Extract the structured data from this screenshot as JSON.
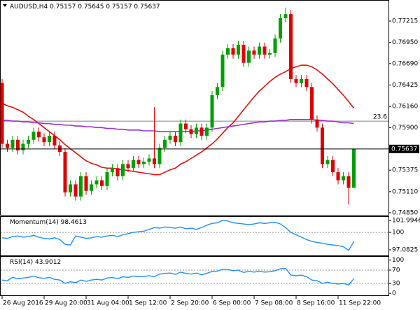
{
  "chart_data": [
    {
      "type": "candlestick",
      "title": "AUDUSD,H4",
      "header_values": [
        0.75157,
        0.75645,
        0.75157,
        0.75637
      ],
      "categories": [
        "26 Aug 2016",
        null,
        null,
        null,
        null,
        null,
        null,
        null,
        "29 Aug 20:00",
        null,
        null,
        null,
        null,
        null,
        null,
        null,
        "31 Aug 04:00",
        null,
        null,
        null,
        null,
        null,
        null,
        null,
        "1 Sep 12:00",
        null,
        null,
        null,
        null,
        null,
        null,
        null,
        "2 Sep 20:00",
        null,
        null,
        null,
        null,
        null,
        null,
        null,
        "6 Sep 00:00",
        null,
        null,
        null,
        null,
        null,
        null,
        null,
        "7 Sep 08:00",
        null,
        null,
        null,
        null,
        null,
        null,
        null,
        "8 Sep 16:00",
        null,
        null,
        null,
        null,
        null,
        null,
        null,
        "11 Sep 22:00",
        null,
        null,
        null
      ],
      "open": [
        0.7645,
        0.757,
        0.7565,
        0.7575,
        0.7562,
        0.757,
        0.7575,
        0.7585,
        0.7578,
        0.7572,
        0.758,
        0.7568,
        0.756,
        0.751,
        0.752,
        0.7505,
        0.753,
        0.7512,
        0.752,
        0.7525,
        0.7518,
        0.7535,
        0.754,
        0.753,
        0.7545,
        0.754,
        0.755,
        0.7545,
        0.7548,
        0.7552,
        0.7545,
        0.7565,
        0.7575,
        0.758,
        0.7572,
        0.7595,
        0.7588,
        0.7582,
        0.759,
        0.758,
        0.759,
        0.763,
        0.764,
        0.768,
        0.7688,
        0.768,
        0.7692,
        0.767,
        0.7685,
        0.768,
        0.769,
        0.768,
        0.7682,
        0.77,
        0.7725,
        0.773,
        0.765,
        0.7645,
        0.765,
        0.764,
        0.76,
        0.759,
        0.7545,
        0.755,
        0.7535,
        0.7525,
        0.753,
        0.75157
      ],
      "high": [
        0.765,
        0.7575,
        0.758,
        0.758,
        0.7575,
        0.758,
        0.759,
        0.759,
        0.7583,
        0.7585,
        0.7585,
        0.7573,
        0.7565,
        0.7525,
        0.7525,
        0.7535,
        0.7535,
        0.7525,
        0.753,
        0.753,
        0.754,
        0.7545,
        0.7545,
        0.755,
        0.755,
        0.7555,
        0.7555,
        0.7553,
        0.7557,
        0.7615,
        0.757,
        0.758,
        0.7585,
        0.7585,
        0.76,
        0.76,
        0.7593,
        0.7595,
        0.7595,
        0.7595,
        0.7635,
        0.7645,
        0.7685,
        0.7693,
        0.7693,
        0.7697,
        0.7697,
        0.769,
        0.769,
        0.7695,
        0.7695,
        0.7687,
        0.7705,
        0.773,
        0.7738,
        0.7735,
        0.7655,
        0.7655,
        0.7655,
        0.7645,
        0.7605,
        0.7595,
        0.7555,
        0.7555,
        0.754,
        0.7535,
        0.7535,
        0.75645
      ],
      "low": [
        0.7565,
        0.756,
        0.756,
        0.7557,
        0.7557,
        0.7565,
        0.757,
        0.7573,
        0.7567,
        0.7567,
        0.7563,
        0.7555,
        0.7505,
        0.7505,
        0.75,
        0.75,
        0.7507,
        0.7507,
        0.7515,
        0.7513,
        0.7513,
        0.753,
        0.7525,
        0.7525,
        0.7535,
        0.7535,
        0.754,
        0.754,
        0.7543,
        0.754,
        0.754,
        0.756,
        0.757,
        0.7567,
        0.7567,
        0.7583,
        0.7577,
        0.7577,
        0.7575,
        0.7575,
        0.7585,
        0.7625,
        0.7635,
        0.7675,
        0.7675,
        0.7675,
        0.7665,
        0.7665,
        0.7675,
        0.7675,
        0.7675,
        0.7675,
        0.7677,
        0.7695,
        0.772,
        0.7645,
        0.764,
        0.764,
        0.7635,
        0.7595,
        0.7585,
        0.754,
        0.754,
        0.753,
        0.752,
        0.752,
        0.7495,
        0.75157
      ],
      "close": [
        0.757,
        0.7565,
        0.7575,
        0.7562,
        0.757,
        0.7575,
        0.7585,
        0.7578,
        0.7572,
        0.758,
        0.7568,
        0.756,
        0.751,
        0.752,
        0.7505,
        0.753,
        0.7512,
        0.752,
        0.7525,
        0.7518,
        0.7535,
        0.754,
        0.753,
        0.7545,
        0.754,
        0.755,
        0.7545,
        0.7548,
        0.7552,
        0.7545,
        0.7565,
        0.7575,
        0.758,
        0.7572,
        0.7595,
        0.7588,
        0.7582,
        0.759,
        0.758,
        0.759,
        0.763,
        0.764,
        0.768,
        0.7688,
        0.768,
        0.7692,
        0.767,
        0.7685,
        0.768,
        0.769,
        0.768,
        0.7682,
        0.77,
        0.7725,
        0.773,
        0.765,
        0.7645,
        0.765,
        0.764,
        0.76,
        0.759,
        0.7545,
        0.755,
        0.7535,
        0.7525,
        0.753,
        0.75157,
        0.75637
      ],
      "up_color": "#00a000",
      "down_color": "#e00000",
      "overlays": [
        {
          "color": "#e81010",
          "values": [
            0.762,
            0.7617,
            0.7615,
            0.7612,
            0.7609,
            0.7604,
            0.76,
            0.7595,
            0.759,
            0.7585,
            0.758,
            0.7575,
            0.7569,
            0.7564,
            0.7559,
            0.7554,
            0.7549,
            0.7546,
            0.7544,
            0.7541,
            0.754,
            0.754,
            0.7539,
            0.7538,
            0.7537,
            0.7536,
            0.7535,
            0.7534,
            0.7533,
            0.7532,
            0.7532,
            0.7535,
            0.7538,
            0.754,
            0.7545,
            0.7548,
            0.7552,
            0.7556,
            0.756,
            0.7565,
            0.757,
            0.7576,
            0.7583,
            0.759,
            0.7596,
            0.7604,
            0.7612,
            0.762,
            0.7628,
            0.7635,
            0.7641,
            0.7647,
            0.7652,
            0.7656,
            0.7659,
            0.7663,
            0.7665,
            0.7667,
            0.7667,
            0.7665,
            0.7661,
            0.7656,
            0.765,
            0.7644,
            0.7637,
            0.763,
            0.7622,
            0.7614
          ]
        },
        {
          "color": "#9932cc",
          "values": [
            0.7599,
            0.7599,
            0.7598,
            0.7598,
            0.7597,
            0.7597,
            0.7596,
            0.7596,
            0.7595,
            0.7595,
            0.7594,
            0.7594,
            0.7593,
            0.7593,
            0.7592,
            0.7592,
            0.7591,
            0.7591,
            0.759,
            0.759,
            0.7589,
            0.7589,
            0.7588,
            0.7588,
            0.7587,
            0.7587,
            0.7587,
            0.7586,
            0.7586,
            0.7586,
            0.7585,
            0.7585,
            0.7585,
            0.7585,
            0.7585,
            0.7585,
            0.7585,
            0.7586,
            0.7586,
            0.7587,
            0.7588,
            0.7589,
            0.759,
            0.7591,
            0.7592,
            0.7593,
            0.7594,
            0.7595,
            0.7596,
            0.7597,
            0.7597,
            0.7598,
            0.7598,
            0.7599,
            0.7599,
            0.76,
            0.76,
            0.76,
            0.76,
            0.76,
            0.7599,
            0.7599,
            0.7598,
            0.7598,
            0.7597,
            0.7596,
            0.7596,
            0.7595
          ]
        }
      ],
      "levels": [
        {
          "value": 0.7598,
          "label": "23.6",
          "color": "#808080"
        }
      ],
      "last_price": 0.75637,
      "ylim": [
        0.74824,
        0.77457
      ],
      "yticks": [
        0.77215,
        {
          "value": 0.7695,
          "label": "0.76950"
        },
        {
          "value": 0.7669,
          "label": "0.76690"
        },
        0.76425,
        {
          "value": 0.7616,
          "label": "0.76160"
        },
        {
          "value": 0.759,
          "label": "0.75900"
        },
        0.75375,
        {
          "value": 0.7511,
          "label": "0.75110"
        },
        {
          "value": 0.7485,
          "label": "0.74850"
        }
      ]
    },
    {
      "type": "line",
      "title": "Momentum(14)",
      "last_value": 98.4613,
      "color": "#1e90ff",
      "values": [
        99.1,
        99.0,
        99.3,
        99.4,
        99.2,
        99.3,
        99.5,
        99.2,
        99.0,
        98.9,
        99.1,
        98.8,
        98.0,
        97.9,
        99.4,
        99.2,
        99.0,
        99.1,
        99.3,
        99.2,
        99.4,
        99.5,
        99.3,
        99.6,
        99.8,
        100.0,
        100.1,
        100.2,
        100.5,
        100.8,
        100.7,
        100.9,
        100.8,
        100.7,
        100.9,
        100.6,
        100.7,
        100.5,
        100.8,
        101.2,
        101.5,
        101.6,
        102.0,
        101.9,
        101.6,
        101.5,
        101.4,
        101.3,
        101.4,
        101.6,
        101.5,
        101.6,
        101.7,
        101.4,
        100.8,
        100.0,
        99.6,
        99.2,
        98.8,
        98.5,
        98.3,
        98.2,
        98.0,
        97.9,
        97.8,
        97.6,
        97.0,
        98.4613
      ],
      "levels": [
        100
      ],
      "ylim": [
        96.15,
        102.58
      ],
      "yticks": [
        101.9946,
        100,
        97.0825
      ]
    },
    {
      "type": "line",
      "title": "RSI(14)",
      "last_value": 43.9012,
      "color": "#1e90ff",
      "values": [
        40,
        38,
        48,
        44,
        46,
        48,
        52,
        47,
        45,
        48,
        42,
        40,
        30,
        35,
        32,
        40,
        36,
        40,
        42,
        40,
        46,
        48,
        44,
        50,
        48,
        52,
        50,
        51,
        53,
        50,
        58,
        60,
        61,
        57,
        64,
        60,
        58,
        61,
        56,
        60,
        66,
        67,
        72,
        72,
        68,
        70,
        63,
        66,
        64,
        66,
        64,
        65,
        68,
        74,
        75,
        55,
        53,
        55,
        50,
        40,
        38,
        30,
        33,
        30,
        28,
        30,
        25,
        43.9012
      ],
      "levels": [
        70,
        30
      ],
      "ylim": [
        -6,
        110
      ],
      "yticks": [
        100,
        70,
        30,
        0
      ]
    }
  ]
}
